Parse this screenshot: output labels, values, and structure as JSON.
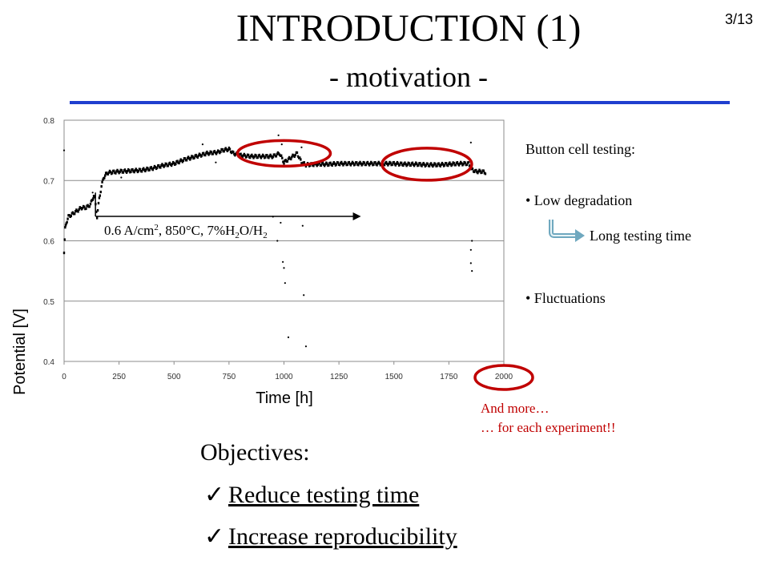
{
  "slide": {
    "title": "INTRODUCTION (1)",
    "subtitle": "- motivation -",
    "page_number": "3/13",
    "accent_color": "#1f3fcf"
  },
  "chart_data": {
    "type": "scatter",
    "xlabel": "Time [h]",
    "ylabel": "Potential [V]",
    "xlim": [
      0,
      2000
    ],
    "ylim": [
      0.4,
      0.8
    ],
    "x_ticks": [
      0,
      250,
      500,
      750,
      1000,
      1250,
      1500,
      1750,
      2000
    ],
    "y_ticks": [
      "0.4",
      "0.5",
      "0.6",
      "0.7",
      "0.8"
    ],
    "grid": true,
    "series": [
      {
        "color": "#000000",
        "points": [
          [
            0,
            0.58
          ],
          [
            5,
            0.62
          ],
          [
            10,
            0.63
          ],
          [
            20,
            0.64
          ],
          [
            40,
            0.645
          ],
          [
            60,
            0.65
          ],
          [
            80,
            0.655
          ],
          [
            100,
            0.655
          ],
          [
            120,
            0.66
          ],
          [
            130,
            0.67
          ],
          [
            135,
            0.675
          ],
          [
            140,
            0.67
          ],
          [
            150,
            0.64
          ],
          [
            160,
            0.67
          ],
          [
            170,
            0.69
          ],
          [
            180,
            0.705
          ],
          [
            190,
            0.71
          ],
          [
            200,
            0.713
          ],
          [
            250,
            0.715
          ],
          [
            300,
            0.716
          ],
          [
            350,
            0.717
          ],
          [
            400,
            0.72
          ],
          [
            450,
            0.725
          ],
          [
            500,
            0.728
          ],
          [
            550,
            0.735
          ],
          [
            600,
            0.74
          ],
          [
            650,
            0.745
          ],
          [
            700,
            0.747
          ],
          [
            720,
            0.75
          ],
          [
            750,
            0.752
          ],
          [
            770,
            0.745
          ],
          [
            800,
            0.742
          ],
          [
            850,
            0.74
          ],
          [
            900,
            0.74
          ],
          [
            950,
            0.74
          ],
          [
            980,
            0.745
          ],
          [
            1000,
            0.73
          ],
          [
            1020,
            0.735
          ],
          [
            1040,
            0.74
          ],
          [
            1060,
            0.745
          ],
          [
            1080,
            0.73
          ],
          [
            1100,
            0.726
          ],
          [
            1150,
            0.727
          ],
          [
            1200,
            0.727
          ],
          [
            1250,
            0.728
          ],
          [
            1300,
            0.728
          ],
          [
            1350,
            0.728
          ],
          [
            1400,
            0.728
          ],
          [
            1450,
            0.728
          ],
          [
            1500,
            0.728
          ],
          [
            1550,
            0.727
          ],
          [
            1600,
            0.727
          ],
          [
            1650,
            0.726
          ],
          [
            1700,
            0.726
          ],
          [
            1750,
            0.727
          ],
          [
            1800,
            0.728
          ],
          [
            1840,
            0.728
          ],
          [
            1850,
            0.72
          ],
          [
            1870,
            0.715
          ],
          [
            1900,
            0.715
          ],
          [
            1920,
            0.713
          ]
        ]
      }
    ],
    "outliers": [
      [
        0,
        0.75
      ],
      [
        130,
        0.68
      ],
      [
        260,
        0.705
      ],
      [
        630,
        0.76
      ],
      [
        690,
        0.73
      ],
      [
        950,
        0.64
      ],
      [
        970,
        0.6
      ],
      [
        975,
        0.775
      ],
      [
        985,
        0.63
      ],
      [
        990,
        0.76
      ],
      [
        995,
        0.565
      ],
      [
        1000,
        0.555
      ],
      [
        1005,
        0.53
      ],
      [
        1020,
        0.44
      ],
      [
        1080,
        0.755
      ],
      [
        1085,
        0.625
      ],
      [
        1090,
        0.51
      ],
      [
        1100,
        0.425
      ],
      [
        1850,
        0.763
      ],
      [
        1850,
        0.585
      ],
      [
        1850,
        0.563
      ],
      [
        1855,
        0.55
      ],
      [
        1855,
        0.6
      ]
    ],
    "condition_label": {
      "text_before": "0.6 A/cm",
      "sup": "2",
      "text_mid": ", 850°C, 7%H",
      "sub1": "2",
      "text_mid2": "O/H",
      "sub2": "2",
      "arrow_x_range": [
        150,
        1350
      ]
    },
    "highlight_circles": [
      {
        "center_x": 1000,
        "center_y": 0.745,
        "note": "fluctuation 1"
      },
      {
        "center_x": 1650,
        "center_y": 0.727,
        "note": "fluctuation 2"
      },
      {
        "center_x": 2000,
        "center_y": 0.4,
        "note": "x-axis end"
      }
    ],
    "highlight_color": "#c00000",
    "arrow_color": "#6fa8bf"
  },
  "side_notes": {
    "heading": "Button cell testing:",
    "item1": "• Low degradation",
    "result": "Long testing time",
    "item2": "• Fluctuations"
  },
  "more_note": {
    "line1": "And more…",
    "line2": "… for each experiment!!"
  },
  "objectives": {
    "heading": "Objectives:",
    "items": [
      {
        "check": "✓",
        "label": "Reduce testing time"
      },
      {
        "check": "✓",
        "label": "Increase reproducibility"
      }
    ]
  }
}
